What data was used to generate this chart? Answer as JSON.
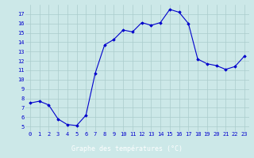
{
  "hours": [
    0,
    1,
    2,
    3,
    4,
    5,
    6,
    7,
    8,
    9,
    10,
    11,
    12,
    13,
    14,
    15,
    16,
    17,
    18,
    19,
    20,
    21,
    22,
    23
  ],
  "temperatures": [
    7.5,
    7.7,
    7.3,
    5.8,
    5.2,
    5.1,
    6.2,
    10.7,
    13.7,
    14.3,
    15.3,
    15.1,
    16.1,
    15.8,
    16.1,
    17.5,
    17.2,
    16.0,
    12.2,
    11.7,
    11.5,
    11.1,
    11.4,
    12.5
  ],
  "line_color": "#0000cc",
  "marker": "D",
  "marker_size": 1.8,
  "bg_color": "#cce8e8",
  "grid_color": "#aacccc",
  "xlabel": "Graphe des températures (°C)",
  "xlabel_bg": "#0000aa",
  "xlabel_color": "#ffffff",
  "ylim": [
    4.5,
    18.0
  ],
  "xlim": [
    -0.5,
    23.5
  ],
  "yticks": [
    5,
    6,
    7,
    8,
    9,
    10,
    11,
    12,
    13,
    14,
    15,
    16,
    17
  ],
  "xticks": [
    0,
    1,
    2,
    3,
    4,
    5,
    6,
    7,
    8,
    9,
    10,
    11,
    12,
    13,
    14,
    15,
    16,
    17,
    18,
    19,
    20,
    21,
    22,
    23
  ],
  "tick_fontsize": 5.0,
  "xlabel_fontsize": 6.0
}
